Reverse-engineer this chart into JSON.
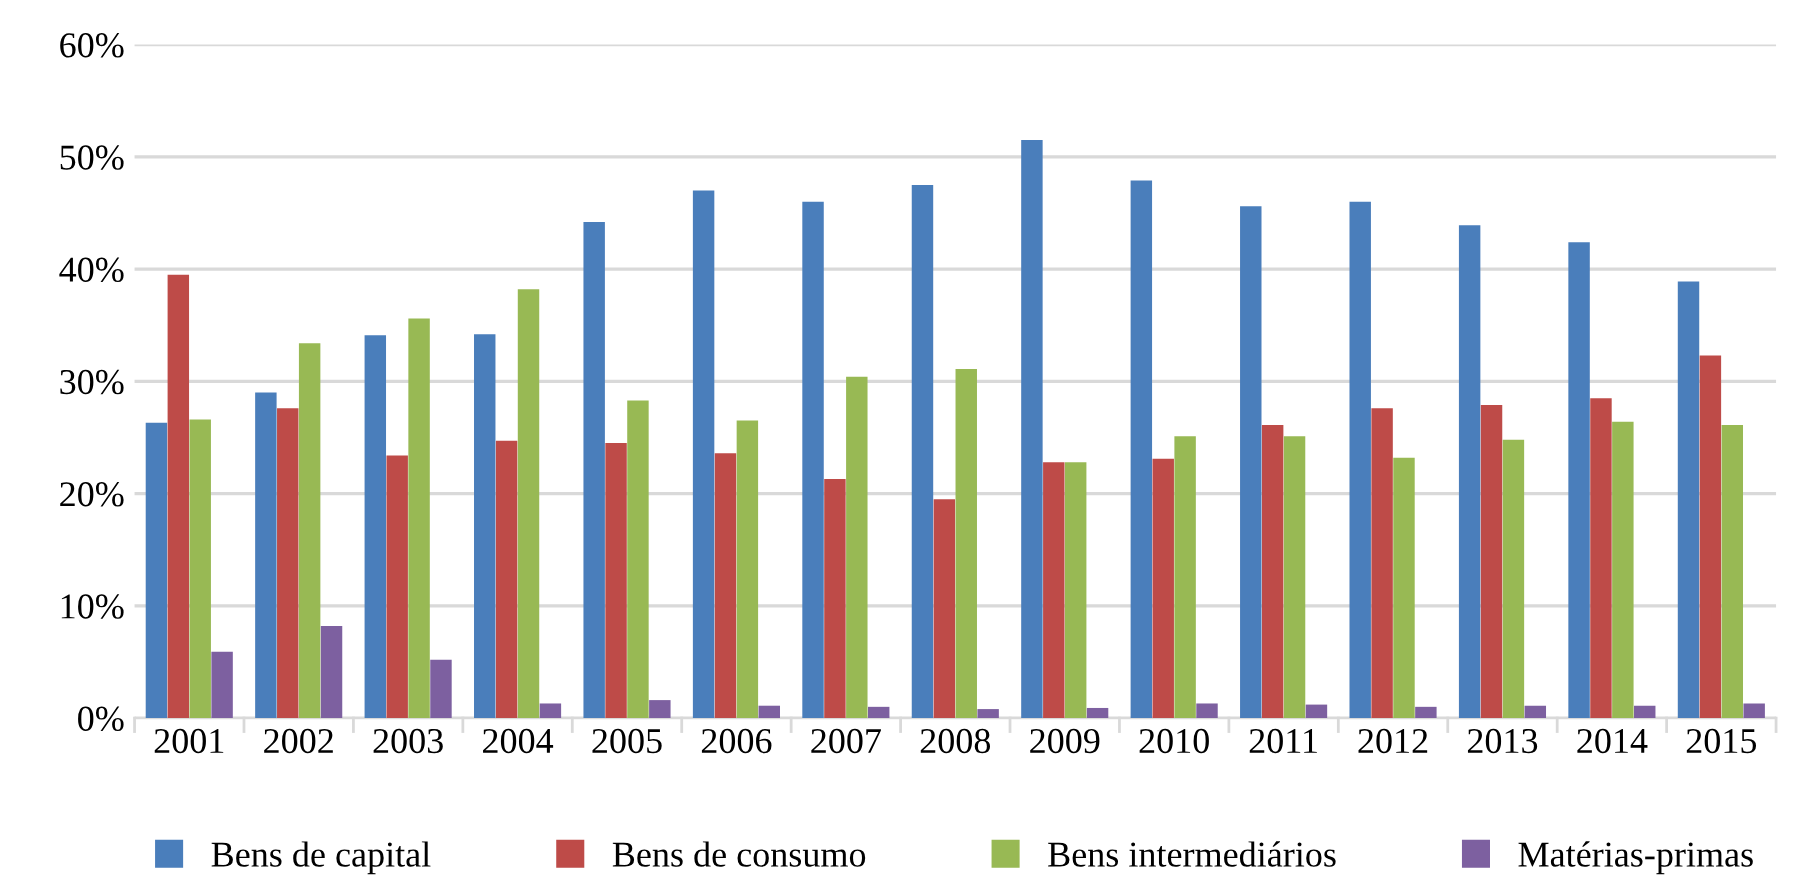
{
  "chart_data": {
    "type": "bar",
    "categories": [
      "2001",
      "2002",
      "2003",
      "2004",
      "2005",
      "2006",
      "2007",
      "2008",
      "2009",
      "2010",
      "2011",
      "2012",
      "2013",
      "2014",
      "2015"
    ],
    "series": [
      {
        "name": "Bens de capital",
        "color": "#4a7ebb",
        "values": [
          26.3,
          29.0,
          34.1,
          34.2,
          44.2,
          47.0,
          46.0,
          47.5,
          51.5,
          47.9,
          45.6,
          46.0,
          43.9,
          42.4,
          38.9
        ]
      },
      {
        "name": "Bens de consumo",
        "color": "#be4b48",
        "values": [
          39.5,
          27.6,
          23.4,
          24.7,
          24.5,
          23.6,
          21.3,
          19.5,
          22.8,
          23.1,
          26.1,
          27.6,
          27.9,
          28.5,
          32.3
        ]
      },
      {
        "name": "Bens intermediários",
        "color": "#98b954",
        "values": [
          26.6,
          33.4,
          35.6,
          38.2,
          28.3,
          26.5,
          30.4,
          31.1,
          22.8,
          25.1,
          25.1,
          23.2,
          24.8,
          26.4,
          26.1
        ]
      },
      {
        "name": "Matérias-primas",
        "color": "#7d60a0",
        "values": [
          5.9,
          8.2,
          5.2,
          1.3,
          1.6,
          1.1,
          1.0,
          0.8,
          0.9,
          1.3,
          1.2,
          1.0,
          1.1,
          1.1,
          1.3
        ]
      }
    ],
    "ylim": [
      0,
      60
    ],
    "yticks": [
      {
        "value": 0,
        "label": "0%"
      },
      {
        "value": 10,
        "label": "10%"
      },
      {
        "value": 20,
        "label": "20%"
      },
      {
        "value": 30,
        "label": "30%"
      },
      {
        "value": 40,
        "label": "40%"
      },
      {
        "value": 50,
        "label": "50%"
      },
      {
        "value": 60,
        "label": "60%"
      }
    ],
    "grid": "y",
    "legend": "bottom"
  }
}
